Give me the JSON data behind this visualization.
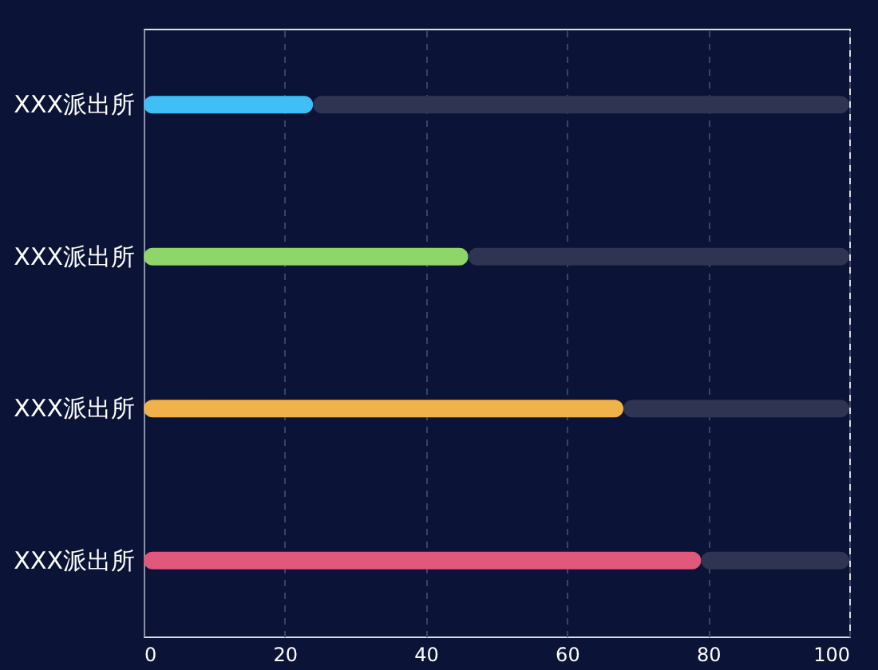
{
  "chart_data": {
    "type": "bar",
    "orientation": "horizontal",
    "stacked": true,
    "categories": [
      "XXX派出所",
      "XXX派出所",
      "XXX派出所",
      "XXX派出所"
    ],
    "series": [
      {
        "values": [
          24,
          46,
          68,
          79
        ],
        "colors": [
          "#3fbff5",
          "#8ed66a",
          "#f0b24a",
          "#e0587a"
        ]
      },
      {
        "color": "#2e3452",
        "values": [
          76,
          54,
          32,
          21
        ]
      }
    ],
    "xlim": [
      0,
      100
    ],
    "xticks": [
      0,
      20,
      40,
      60,
      80,
      100
    ],
    "grid": "x",
    "legend": false
  }
}
